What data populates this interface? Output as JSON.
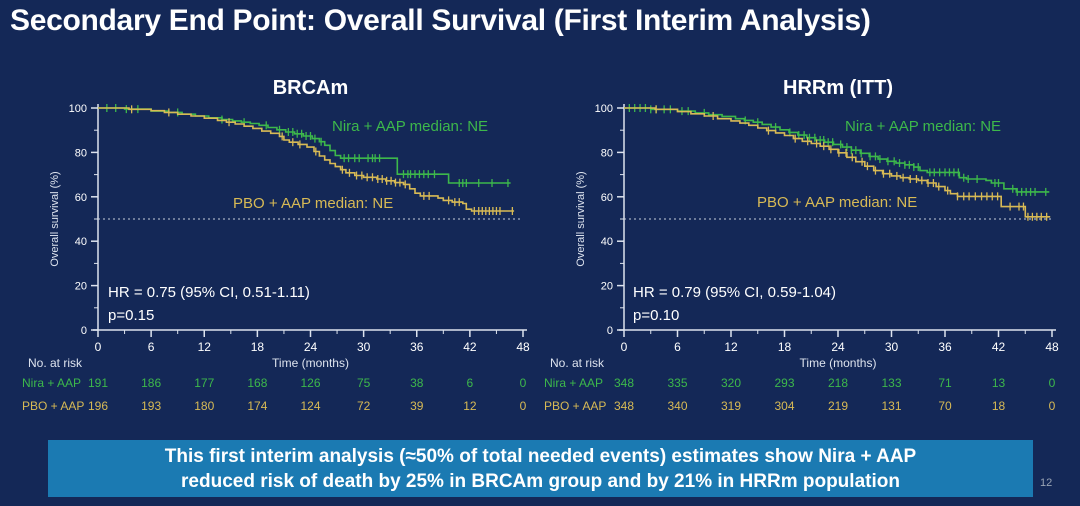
{
  "title": "Secondary End Point: Overall Survival (First Interim Analysis)",
  "slide_number": "12",
  "banner": {
    "line1": "This first interim analysis (≈50% of total needed events) estimates show Nira + AAP",
    "line2": "reduced risk of death by 25% in BRCAm group and by 21% in HRRm population"
  },
  "colors": {
    "background": "#142857",
    "banner_blue": "#1b7ab2",
    "nira_green": "#3db84b",
    "pbo_yellow": "#d8ba55",
    "axis": "#dde3ee",
    "tick_text": "#ffffff",
    "dashed_line": "#c8cfdd",
    "annotation_text": "#ffffff"
  },
  "chart_data": [
    {
      "type": "line",
      "subtype": "kaplan-meier-step",
      "title": "BRCAm",
      "xlabel": "Time (months)",
      "ylabel": "Overall survival (%)",
      "xlim": [
        0,
        48
      ],
      "ylim": [
        0,
        100
      ],
      "xticks": [
        0,
        6,
        12,
        18,
        24,
        30,
        36,
        42,
        48
      ],
      "yticks": [
        0,
        20,
        40,
        60,
        80,
        100
      ],
      "reference_line_y": 50,
      "annotation": {
        "line1": "HR = 0.75 (95% CI, 0.51-1.11)",
        "line2": "p=0.15"
      },
      "series": [
        {
          "name": "Nira + AAP",
          "legend": "Nira + AAP median: NE",
          "color_key": "nira_green",
          "steps": [
            [
              0,
              100
            ],
            [
              3,
              99.5
            ],
            [
              6,
              98.6
            ],
            [
              8,
              98
            ],
            [
              9.5,
              97.2
            ],
            [
              11,
              96.4
            ],
            [
              12.5,
              95.6
            ],
            [
              14,
              94.8
            ],
            [
              15.2,
              94.2
            ],
            [
              16.2,
              93.6
            ],
            [
              17.2,
              93
            ],
            [
              18.2,
              92.2
            ],
            [
              19.2,
              91.2
            ],
            [
              20.2,
              90.2
            ],
            [
              21.2,
              89.2
            ],
            [
              22.2,
              88.4
            ],
            [
              23.2,
              87.4
            ],
            [
              24.2,
              86.2
            ],
            [
              25,
              84.8
            ],
            [
              25.6,
              83.2
            ],
            [
              26.2,
              80.8
            ],
            [
              26.8,
              78.6
            ],
            [
              27.4,
              77.4
            ],
            [
              33.8,
              70.2
            ],
            [
              39.6,
              66.2
            ],
            [
              46.6,
              66.2
            ]
          ],
          "censors": [
            1,
            2,
            3.2,
            4.5,
            9,
            14,
            16.5,
            19,
            20.5,
            21.5,
            22,
            22.5,
            23,
            23.5,
            24,
            24.5,
            25.2,
            27.8,
            28.3,
            29,
            29.5,
            30.5,
            31,
            31.3,
            31.8,
            34.5,
            35,
            35.3,
            35.8,
            36.3,
            36.8,
            37.3,
            38,
            40.8,
            41.2,
            41.6,
            43,
            44.5,
            46.3
          ]
        },
        {
          "name": "PBO + AAP",
          "legend": "PBO + AAP median: NE",
          "color_key": "pbo_yellow",
          "steps": [
            [
              0,
              100
            ],
            [
              3.5,
              99.4
            ],
            [
              6,
              98.8
            ],
            [
              7.5,
              98
            ],
            [
              9,
              97.2
            ],
            [
              10.5,
              96.4
            ],
            [
              12,
              95.4
            ],
            [
              13.5,
              94.4
            ],
            [
              14.5,
              93.6
            ],
            [
              15.5,
              92.8
            ],
            [
              16.5,
              91.8
            ],
            [
              17.5,
              90.8
            ],
            [
              18.5,
              89.6
            ],
            [
              19.5,
              88.6
            ],
            [
              20.5,
              87.2
            ],
            [
              21,
              85.6
            ],
            [
              21.6,
              84.6
            ],
            [
              22.6,
              83.6
            ],
            [
              23.6,
              82.4
            ],
            [
              24.4,
              80.4
            ],
            [
              25,
              78.4
            ],
            [
              25.6,
              76.6
            ],
            [
              26.2,
              75
            ],
            [
              26.8,
              73.6
            ],
            [
              27.4,
              72.2
            ],
            [
              28,
              70.8
            ],
            [
              29,
              69.6
            ],
            [
              30,
              68.8
            ],
            [
              31.5,
              68
            ],
            [
              32.5,
              67.2
            ],
            [
              33.5,
              66.4
            ],
            [
              34.5,
              65.6
            ],
            [
              35.2,
              63.6
            ],
            [
              35.8,
              61.6
            ],
            [
              36.4,
              60.4
            ],
            [
              38.4,
              59.4
            ],
            [
              39,
              58.4
            ],
            [
              40,
              57.6
            ],
            [
              41.2,
              57
            ],
            [
              41.6,
              54.4
            ],
            [
              42.2,
              53.6
            ],
            [
              47,
              53.6
            ]
          ],
          "censors": [
            3.8,
            8,
            14.8,
            20.8,
            22,
            22.8,
            24.6,
            27.6,
            28.4,
            29.2,
            29.8,
            30.4,
            31,
            31.6,
            32.1,
            32.6,
            33.1,
            33.6,
            34.1,
            34.7,
            36.8,
            37.4,
            39.6,
            40.3,
            40.8,
            42.5,
            43,
            43.4,
            43.8,
            44.2,
            44.6,
            45,
            45.4,
            46.8
          ]
        }
      ],
      "at_risk": {
        "header": "No. at risk",
        "rows": [
          {
            "name": "Nira + AAP",
            "color_key": "nira_green",
            "values": [
              191,
              186,
              177,
              168,
              126,
              75,
              38,
              6,
              0
            ]
          },
          {
            "name": "PBO + AAP",
            "color_key": "pbo_yellow",
            "values": [
              196,
              193,
              180,
              174,
              124,
              72,
              39,
              12,
              0
            ]
          }
        ]
      }
    },
    {
      "type": "line",
      "subtype": "kaplan-meier-step",
      "title": "HRRm (ITT)",
      "xlabel": "Time (months)",
      "ylabel": "Overall survival (%)",
      "xlim": [
        0,
        48
      ],
      "ylim": [
        0,
        100
      ],
      "xticks": [
        0,
        6,
        12,
        18,
        24,
        30,
        36,
        42,
        48
      ],
      "yticks": [
        0,
        20,
        40,
        60,
        80,
        100
      ],
      "reference_line_y": 50,
      "annotation": {
        "line1": "HR = 0.79 (95% CI, 0.59-1.04)",
        "line2": "p=0.10"
      },
      "series": [
        {
          "name": "Nira + AAP",
          "legend": "Nira + AAP median: NE",
          "color_key": "nira_green",
          "steps": [
            [
              0,
              100
            ],
            [
              3,
              99.4
            ],
            [
              6,
              98.6
            ],
            [
              8,
              97.8
            ],
            [
              9.5,
              97
            ],
            [
              11,
              96.2
            ],
            [
              12.5,
              95.2
            ],
            [
              13.5,
              94.4
            ],
            [
              14.5,
              93.6
            ],
            [
              15.5,
              92.6
            ],
            [
              16.5,
              91.4
            ],
            [
              17.5,
              90.2
            ],
            [
              18.5,
              89
            ],
            [
              19.5,
              87.8
            ],
            [
              20.5,
              86.6
            ],
            [
              21.5,
              85.6
            ],
            [
              22.5,
              84.6
            ],
            [
              23.5,
              83.6
            ],
            [
              24.5,
              82.4
            ],
            [
              25.5,
              81
            ],
            [
              26.5,
              79.6
            ],
            [
              27.5,
              78.2
            ],
            [
              28.5,
              77
            ],
            [
              29.5,
              76
            ],
            [
              30.5,
              75.2
            ],
            [
              31.5,
              74.4
            ],
            [
              32.5,
              73.4
            ],
            [
              33.2,
              71.8
            ],
            [
              34,
              71
            ],
            [
              37.6,
              68.6
            ],
            [
              38.4,
              68
            ],
            [
              40.6,
              67.4
            ],
            [
              41.2,
              66.2
            ],
            [
              42.6,
              63.6
            ],
            [
              44,
              62.2
            ],
            [
              47.7,
              62.2
            ]
          ],
          "censors": [
            0.6,
            1.2,
            1.8,
            2.4,
            3,
            3.6,
            4.5,
            5.2,
            6.5,
            7.2,
            9,
            13.6,
            15,
            17,
            18.6,
            19.6,
            20.2,
            20.8,
            21.4,
            22,
            22.4,
            22.9,
            23.4,
            24.3,
            25,
            25.5,
            26,
            26.6,
            27.6,
            28.2,
            28.7,
            29.6,
            30.3,
            30.9,
            31.5,
            32,
            32.5,
            33,
            34.3,
            34.8,
            35.4,
            36,
            36.5,
            37,
            37.5,
            38.1,
            38.6,
            39.6,
            41.6,
            42,
            43.6,
            44.1,
            44.6,
            45.1,
            45.6,
            46.1,
            47.3
          ]
        },
        {
          "name": "PBO + AAP",
          "legend": "PBO + AAP median: NE",
          "color_key": "pbo_yellow",
          "steps": [
            [
              0,
              100
            ],
            [
              3.5,
              99.4
            ],
            [
              6,
              98.4
            ],
            [
              7.5,
              97.4
            ],
            [
              9,
              96.4
            ],
            [
              10.5,
              95.2
            ],
            [
              12,
              94.2
            ],
            [
              13,
              93.2
            ],
            [
              14,
              92.2
            ],
            [
              15,
              91
            ],
            [
              16,
              89.8
            ],
            [
              17,
              88.8
            ],
            [
              18,
              87.6
            ],
            [
              19,
              86.2
            ],
            [
              20,
              85
            ],
            [
              21,
              84
            ],
            [
              22,
              82.8
            ],
            [
              23,
              81.4
            ],
            [
              24,
              79.8
            ],
            [
              25,
              77.8
            ],
            [
              26,
              75.8
            ],
            [
              27,
              73.8
            ],
            [
              28,
              71.8
            ],
            [
              29,
              70.4
            ],
            [
              30,
              69.4
            ],
            [
              31,
              68.6
            ],
            [
              32,
              68
            ],
            [
              33,
              67.4
            ],
            [
              34,
              66.2
            ],
            [
              35,
              64.6
            ],
            [
              36,
              62.8
            ],
            [
              36.6,
              61.4
            ],
            [
              37.4,
              60.2
            ],
            [
              42.3,
              55.6
            ],
            [
              45,
              51
            ],
            [
              47.8,
              51
            ]
          ],
          "censors": [
            3.6,
            10,
            16.2,
            19.2,
            20.6,
            21.6,
            22.4,
            23.2,
            24.1,
            24.9,
            25.6,
            26.7,
            27.3,
            28.2,
            29.1,
            29.8,
            30.6,
            31.3,
            32.1,
            32.8,
            33.4,
            34.1,
            34.7,
            35.3,
            36.3,
            37.4,
            38.1,
            38.7,
            39.4,
            40.1,
            40.7,
            41.3,
            41.9,
            43.3,
            44.3,
            44.8,
            45.3,
            45.8,
            46.3,
            46.8,
            47.4
          ]
        }
      ],
      "at_risk": {
        "header": "No. at risk",
        "rows": [
          {
            "name": "Nira + AAP",
            "color_key": "nira_green",
            "values": [
              348,
              335,
              320,
              293,
              218,
              133,
              71,
              13,
              0
            ]
          },
          {
            "name": "PBO + AAP",
            "color_key": "pbo_yellow",
            "values": [
              348,
              340,
              319,
              304,
              219,
              131,
              70,
              18,
              0
            ]
          }
        ]
      }
    }
  ]
}
